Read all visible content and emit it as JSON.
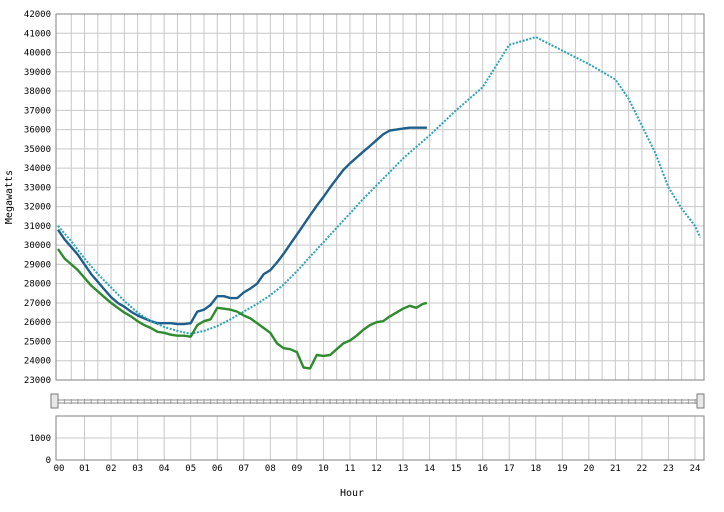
{
  "chart_data": [
    {
      "type": "line",
      "title": "",
      "xlabel": "Hour",
      "ylabel": "Megawatts",
      "xlim": [
        0,
        24.2
      ],
      "ylim": [
        23000,
        42000
      ],
      "x_ticks": [
        "00",
        "01",
        "02",
        "03",
        "04",
        "05",
        "06",
        "07",
        "08",
        "09",
        "10",
        "11",
        "12",
        "13",
        "14",
        "15",
        "16",
        "17",
        "18",
        "19",
        "20",
        "21",
        "22",
        "23",
        "24"
      ],
      "y_ticks": [
        23000,
        24000,
        25000,
        26000,
        27000,
        28000,
        29000,
        30000,
        31000,
        32000,
        33000,
        34000,
        35000,
        36000,
        37000,
        38000,
        39000,
        40000,
        41000,
        42000
      ],
      "grid": true,
      "legend": "none",
      "series": [
        {
          "color": "#1f5f8b",
          "style": "solid",
          "x": [
            0,
            0.25,
            0.5,
            0.75,
            1,
            1.25,
            1.5,
            1.75,
            2,
            2.25,
            2.5,
            2.75,
            3,
            3.25,
            3.5,
            3.75,
            4,
            4.25,
            4.5,
            4.75,
            5,
            5.25,
            5.5,
            5.75,
            6,
            6.25,
            6.5,
            6.75,
            7,
            7.25,
            7.5,
            7.75,
            8,
            8.25,
            8.5,
            8.75,
            9,
            9.25,
            9.5,
            9.75,
            10,
            10.25,
            10.5,
            10.75,
            11,
            11.25,
            11.5,
            11.75,
            12,
            12.25,
            12.5,
            12.75,
            13,
            13.25,
            13.5,
            13.75,
            13.9
          ],
          "values": [
            30800,
            30300,
            29900,
            29500,
            29000,
            28500,
            28100,
            27700,
            27300,
            27000,
            26800,
            26550,
            26350,
            26200,
            26050,
            25950,
            25950,
            25950,
            25900,
            25900,
            25950,
            26550,
            26650,
            26900,
            27350,
            27350,
            27250,
            27250,
            27550,
            27750,
            28000,
            28500,
            28700,
            29100,
            29550,
            30050,
            30550,
            31050,
            31550,
            32050,
            32500,
            33000,
            33450,
            33900,
            34250,
            34550,
            34850,
            35150,
            35450,
            35750,
            35950,
            36000,
            36050,
            36100,
            36100,
            36100,
            36100
          ]
        },
        {
          "color": "#2aa3b8",
          "style": "dotted",
          "x": [
            0,
            0.5,
            1,
            1.5,
            2,
            2.5,
            3,
            3.5,
            4,
            4.5,
            5,
            5.5,
            6,
            6.5,
            7,
            7.5,
            8,
            8.5,
            9,
            9.5,
            10,
            10.5,
            11,
            11.5,
            12,
            12.5,
            13,
            13.5,
            14,
            15,
            16,
            17,
            18,
            19,
            20,
            21,
            21.5,
            22,
            22.5,
            23,
            23.5,
            24,
            24.2
          ],
          "values": [
            31000,
            30200,
            29300,
            28500,
            27800,
            27100,
            26500,
            26050,
            25750,
            25550,
            25400,
            25550,
            25800,
            26150,
            26550,
            26950,
            27400,
            27950,
            28650,
            29400,
            30150,
            30900,
            31650,
            32400,
            33100,
            33800,
            34500,
            35100,
            35700,
            37000,
            38200,
            40400,
            40800,
            40100,
            39400,
            38600,
            37600,
            36200,
            34800,
            33000,
            31900,
            31000,
            30400
          ]
        },
        {
          "color": "#2e8b2e",
          "style": "solid",
          "x": [
            0,
            0.25,
            0.5,
            0.75,
            1,
            1.25,
            1.5,
            1.75,
            2,
            2.25,
            2.5,
            2.75,
            3,
            3.25,
            3.5,
            3.75,
            4,
            4.25,
            4.5,
            4.75,
            5,
            5.25,
            5.5,
            5.75,
            6,
            6.25,
            6.5,
            6.75,
            7,
            7.25,
            7.5,
            7.75,
            8,
            8.25,
            8.5,
            8.75,
            9,
            9.25,
            9.5,
            9.75,
            10,
            10.25,
            10.5,
            10.75,
            11,
            11.25,
            11.5,
            11.75,
            12,
            12.25,
            12.5,
            12.75,
            13,
            13.25,
            13.5,
            13.75,
            13.9
          ],
          "values": [
            29800,
            29300,
            29000,
            28700,
            28300,
            27900,
            27600,
            27300,
            27000,
            26750,
            26500,
            26300,
            26050,
            25850,
            25700,
            25500,
            25450,
            25350,
            25300,
            25300,
            25250,
            25850,
            26050,
            26150,
            26750,
            26700,
            26650,
            26550,
            26350,
            26200,
            25950,
            25700,
            25450,
            24900,
            24650,
            24600,
            24450,
            23650,
            23600,
            24300,
            24250,
            24300,
            24600,
            24900,
            25050,
            25300,
            25600,
            25850,
            26000,
            26050,
            26300,
            26500,
            26700,
            26850,
            26750,
            26950,
            27000
          ]
        }
      ]
    },
    {
      "type": "bar",
      "title": "",
      "xlabel": "Hour",
      "ylabel": "",
      "ylim": [
        0,
        2000
      ],
      "y_ticks": [
        0,
        1000
      ],
      "values": [],
      "grid": true
    }
  ]
}
